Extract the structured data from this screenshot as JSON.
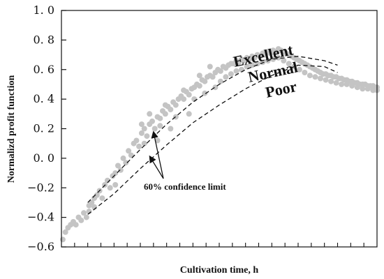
{
  "chart_data": {
    "type": "scatter",
    "title": "",
    "xlabel": "Cultivation time, h",
    "ylabel": "Normalizd profit function",
    "xlim": [
      0,
      48
    ],
    "ylim": [
      -0.6,
      1.0
    ],
    "y_ticks": [
      "−0.6",
      "−0.4",
      "−0.2",
      "0. 0",
      "0. 2",
      "0. 4",
      "0. 6",
      "0. 8",
      "1. 0"
    ],
    "y_tick_values": [
      -0.6,
      -0.4,
      -0.2,
      0.0,
      0.2,
      0.4,
      0.6,
      0.8,
      1.0
    ],
    "x_minor_tick_count": 24,
    "grid": false,
    "point_color": "#c4c4c4",
    "curve_color": "#111111",
    "annotations": {
      "excellent": "Excellent",
      "normal": "Normal",
      "poor": "Poor",
      "confidence": "60% confidence limit"
    },
    "confidence_upper": {
      "x": [
        4,
        8,
        12,
        16,
        20,
        24,
        28,
        32,
        36,
        40,
        42
      ],
      "y": [
        -0.3,
        -0.12,
        0.06,
        0.23,
        0.38,
        0.5,
        0.6,
        0.67,
        0.69,
        0.66,
        0.63
      ]
    },
    "confidence_lower": {
      "x": [
        4,
        8,
        12,
        16,
        20,
        24,
        28,
        32,
        36,
        40,
        42
      ],
      "y": [
        -0.38,
        -0.24,
        -0.07,
        0.09,
        0.24,
        0.36,
        0.47,
        0.56,
        0.63,
        0.62,
        0.58
      ]
    },
    "series": [
      {
        "points": [
          [
            0.2,
            -0.55
          ],
          [
            0.6,
            -0.5
          ],
          [
            1.0,
            -0.47
          ],
          [
            1.4,
            -0.45
          ],
          [
            1.8,
            -0.43
          ],
          [
            2.2,
            -0.45
          ],
          [
            2.6,
            -0.4
          ],
          [
            3.0,
            -0.42
          ],
          [
            3.4,
            -0.37
          ],
          [
            3.8,
            -0.4
          ],
          [
            4.2,
            -0.32
          ],
          [
            4.2,
            -0.36
          ],
          [
            4.6,
            -0.3
          ],
          [
            5.0,
            -0.27
          ],
          [
            5.0,
            -0.33
          ],
          [
            5.4,
            -0.25
          ],
          [
            5.8,
            -0.22
          ],
          [
            6.2,
            -0.27
          ],
          [
            6.6,
            -0.18
          ],
          [
            7.0,
            -0.15
          ],
          [
            7.4,
            -0.2
          ],
          [
            7.8,
            -0.12
          ],
          [
            8.2,
            -0.1
          ],
          [
            8.2,
            -0.18
          ],
          [
            8.6,
            -0.05
          ],
          [
            9.0,
            -0.08
          ],
          [
            9.4,
            0.0
          ],
          [
            9.8,
            -0.03
          ],
          [
            10.2,
            0.05
          ],
          [
            10.6,
            0.02
          ],
          [
            11.0,
            0.1
          ],
          [
            11.4,
            0.12
          ],
          [
            11.8,
            0.08
          ],
          [
            12.2,
            0.17
          ],
          [
            12.6,
            0.2
          ],
          [
            13.0,
            0.15
          ],
          [
            13.4,
            0.23
          ],
          [
            13.8,
            0.25
          ],
          [
            14.2,
            0.2
          ],
          [
            14.6,
            0.28
          ],
          [
            15.0,
            0.27
          ],
          [
            15.4,
            0.32
          ],
          [
            15.8,
            0.3
          ],
          [
            16.2,
            0.35
          ],
          [
            16.6,
            0.33
          ],
          [
            17.0,
            0.38
          ],
          [
            17.4,
            0.36
          ],
          [
            17.8,
            0.4
          ],
          [
            18.2,
            0.42
          ],
          [
            18.6,
            0.4
          ],
          [
            19.0,
            0.45
          ],
          [
            19.4,
            0.43
          ],
          [
            19.8,
            0.47
          ],
          [
            20.2,
            0.48
          ],
          [
            20.6,
            0.5
          ],
          [
            21.0,
            0.49
          ],
          [
            21.4,
            0.53
          ],
          [
            21.8,
            0.52
          ],
          [
            22.2,
            0.55
          ],
          [
            22.6,
            0.56
          ],
          [
            23.0,
            0.55
          ],
          [
            23.4,
            0.58
          ],
          [
            23.8,
            0.6
          ],
          [
            24.2,
            0.59
          ],
          [
            24.6,
            0.62
          ],
          [
            25.0,
            0.61
          ],
          [
            25.4,
            0.63
          ],
          [
            25.8,
            0.64
          ],
          [
            26.2,
            0.64
          ],
          [
            26.6,
            0.66
          ],
          [
            27.0,
            0.65
          ],
          [
            27.4,
            0.67
          ],
          [
            27.8,
            0.66
          ],
          [
            28.2,
            0.68
          ],
          [
            28.6,
            0.67
          ],
          [
            29.0,
            0.69
          ],
          [
            29.4,
            0.68
          ],
          [
            29.8,
            0.7
          ],
          [
            30.2,
            0.69
          ],
          [
            30.6,
            0.71
          ],
          [
            31.0,
            0.7
          ],
          [
            31.4,
            0.72
          ],
          [
            31.8,
            0.71
          ],
          [
            32.2,
            0.73
          ],
          [
            32.6,
            0.72
          ],
          [
            33.0,
            0.74
          ],
          [
            33.4,
            0.73
          ],
          [
            33.8,
            0.72
          ],
          [
            34.2,
            0.71
          ],
          [
            34.6,
            0.7
          ],
          [
            35.0,
            0.69
          ],
          [
            35.4,
            0.68
          ],
          [
            35.8,
            0.67
          ],
          [
            36.2,
            0.66
          ],
          [
            36.6,
            0.65
          ],
          [
            37.0,
            0.64
          ],
          [
            37.4,
            0.63
          ],
          [
            37.8,
            0.62
          ],
          [
            38.2,
            0.61
          ],
          [
            38.6,
            0.6
          ],
          [
            39.0,
            0.59
          ],
          [
            39.4,
            0.58
          ],
          [
            39.8,
            0.57
          ],
          [
            40.2,
            0.57
          ],
          [
            40.6,
            0.56
          ],
          [
            41.0,
            0.56
          ],
          [
            41.4,
            0.55
          ],
          [
            41.8,
            0.55
          ],
          [
            42.2,
            0.54
          ],
          [
            42.6,
            0.54
          ],
          [
            43.0,
            0.53
          ],
          [
            43.4,
            0.53
          ],
          [
            43.8,
            0.52
          ],
          [
            44.2,
            0.52
          ],
          [
            44.6,
            0.51
          ],
          [
            45.0,
            0.51
          ],
          [
            45.4,
            0.5
          ],
          [
            45.8,
            0.5
          ],
          [
            46.2,
            0.5
          ],
          [
            46.6,
            0.49
          ],
          [
            47.0,
            0.49
          ],
          [
            47.4,
            0.49
          ],
          [
            47.8,
            0.48
          ],
          [
            48.0,
            0.48
          ],
          [
            12.2,
            0.23
          ],
          [
            12.6,
            0.1
          ],
          [
            13.4,
            0.3
          ],
          [
            14.6,
            0.12
          ],
          [
            15.0,
            0.22
          ],
          [
            15.8,
            0.36
          ],
          [
            16.6,
            0.2
          ],
          [
            17.4,
            0.28
          ],
          [
            18.6,
            0.46
          ],
          [
            19.4,
            0.3
          ],
          [
            20.2,
            0.4
          ],
          [
            21.0,
            0.56
          ],
          [
            21.8,
            0.44
          ],
          [
            22.6,
            0.62
          ],
          [
            23.4,
            0.48
          ],
          [
            24.2,
            0.52
          ],
          [
            25.0,
            0.55
          ],
          [
            25.8,
            0.57
          ],
          [
            26.6,
            0.59
          ],
          [
            27.4,
            0.6
          ],
          [
            28.2,
            0.62
          ],
          [
            29.0,
            0.63
          ],
          [
            29.8,
            0.64
          ],
          [
            30.6,
            0.65
          ],
          [
            31.4,
            0.66
          ],
          [
            32.2,
            0.67
          ],
          [
            33.0,
            0.68
          ],
          [
            33.8,
            0.66
          ],
          [
            34.6,
            0.64
          ],
          [
            35.4,
            0.62
          ],
          [
            36.2,
            0.6
          ],
          [
            37.0,
            0.58
          ],
          [
            37.8,
            0.56
          ],
          [
            38.6,
            0.55
          ],
          [
            39.4,
            0.54
          ],
          [
            40.2,
            0.53
          ],
          [
            41.0,
            0.52
          ],
          [
            41.8,
            0.51
          ],
          [
            42.6,
            0.5
          ],
          [
            43.4,
            0.5
          ],
          [
            44.2,
            0.49
          ],
          [
            45.0,
            0.48
          ],
          [
            45.8,
            0.47
          ],
          [
            46.6,
            0.47
          ],
          [
            47.4,
            0.46
          ],
          [
            48.0,
            0.46
          ]
        ]
      }
    ]
  }
}
